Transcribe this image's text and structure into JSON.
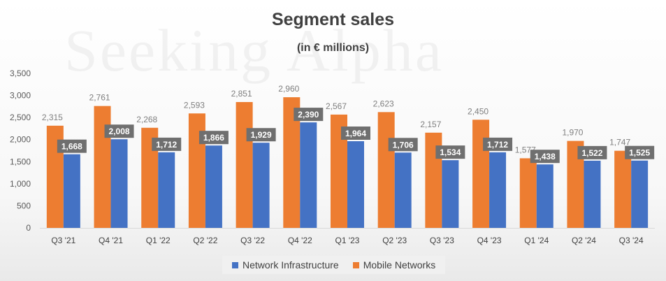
{
  "watermark": "Seeking Alpha",
  "chart_data": {
    "type": "bar",
    "title": "Segment sales",
    "subtitle": "(in € millions)",
    "categories": [
      "Q3 '21",
      "Q4 '21",
      "Q1 '22",
      "Q2 '22",
      "Q3 '22",
      "Q4 '22",
      "Q1 '23",
      "Q2 '23",
      "Q3 '23",
      "Q4 '23",
      "Q1 '24",
      "Q2 '24",
      "Q3 '24"
    ],
    "series": [
      {
        "name": "Mobile Networks",
        "color": "#ED7D31",
        "values": [
          2315,
          2761,
          2268,
          2593,
          2851,
          2960,
          2567,
          2623,
          2157,
          2450,
          1577,
          1970,
          1747
        ],
        "labels": [
          "2,315",
          "2,761",
          "2,268",
          "2,593",
          "2,851",
          "2,960",
          "2,567",
          "2,623",
          "2,157",
          "2,450",
          "1,577",
          "1,970",
          "1,747"
        ]
      },
      {
        "name": "Network Infrastructure",
        "color": "#4472C4",
        "values": [
          1668,
          2008,
          1712,
          1866,
          1929,
          2390,
          1964,
          1706,
          1534,
          1712,
          1438,
          1522,
          1525
        ],
        "labels": [
          "1,668",
          "2,008",
          "1,712",
          "1,866",
          "1,929",
          "2,390",
          "1,964",
          "1,706",
          "1,534",
          "1,712",
          "1,438",
          "1,522",
          "1,525"
        ]
      }
    ],
    "y_ticks": [
      0,
      500,
      1000,
      1500,
      2000,
      2500,
      3000,
      3500
    ],
    "y_tick_labels": [
      "0",
      "500",
      "1,000",
      "1,500",
      "2,000",
      "2,500",
      "3,000",
      "3,500"
    ],
    "ylim": [
      0,
      3500
    ],
    "grid": false,
    "legend": {
      "position": "bottom",
      "items": [
        "Network Infrastructure",
        "Mobile Networks"
      ],
      "colors": [
        "#4472C4",
        "#ED7D31"
      ]
    },
    "label_box_color": "#6F6F6F"
  }
}
